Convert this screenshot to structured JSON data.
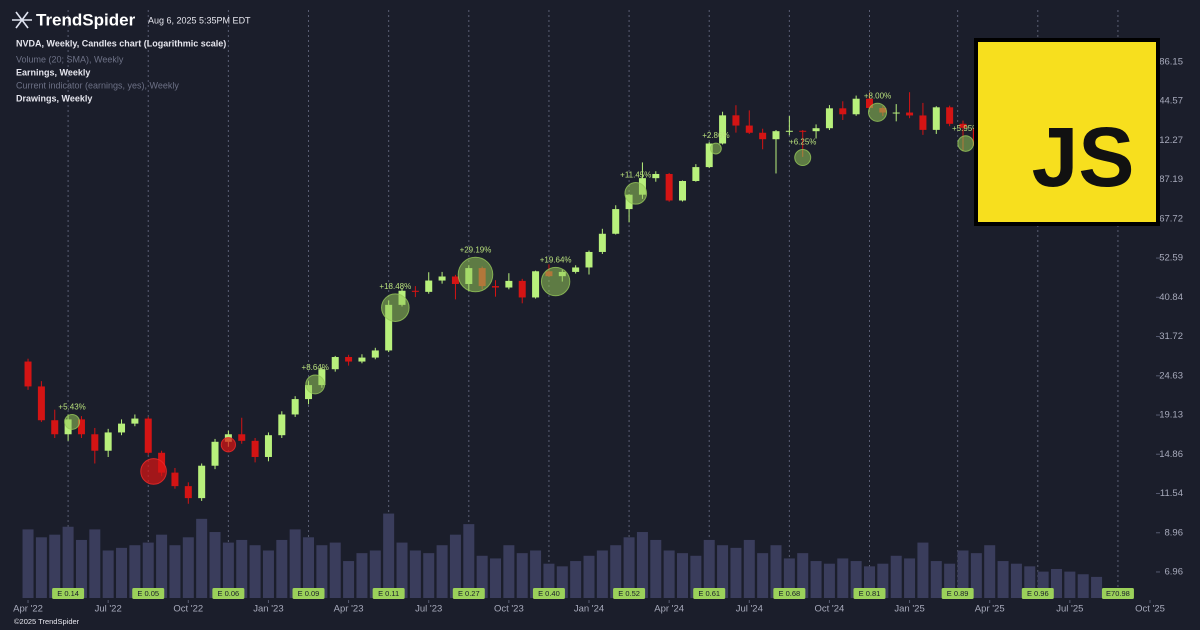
{
  "header": {
    "brand": "TrendSpider",
    "timestamp": "Aug 6, 2025 5:35PM EDT",
    "copyright": "©2025 TrendSpider"
  },
  "indicators": [
    "Volume (20; SMA), Weekly",
    "Earnings, Weekly",
    "Current indicator (earnings, yes), Weekly",
    "Drawings, Weekly"
  ],
  "logo_overlay": "JS",
  "chart_data": {
    "type": "candlestick",
    "title": "NVDA, Weekly, Candles chart (Logarithmic scale)",
    "log_scale": true,
    "grid": false,
    "up_color": "#b8f07c",
    "down_color": "#d41414",
    "volume_color": "#3a3d5c",
    "ylim": [
      5.81,
      260
    ],
    "yticks": [
      6.96,
      8.96,
      11.54,
      14.86,
      19.13,
      24.63,
      31.72,
      40.84,
      52.59,
      67.72,
      87.19,
      112.27,
      144.57,
      186.15
    ],
    "y2lim": [
      0,
      1800
    ],
    "xlim": [
      -1.35,
      84.6
    ],
    "xticks": [
      {
        "value": 0,
        "label": "Apr '22"
      },
      {
        "value": 6,
        "label": "Jul '22"
      },
      {
        "value": 12,
        "label": "Oct '22"
      },
      {
        "value": 18,
        "label": "Jan '23"
      },
      {
        "value": 24,
        "label": "Apr '23"
      },
      {
        "value": 30,
        "label": "Jul '23"
      },
      {
        "value": 36,
        "label": "Oct '23"
      },
      {
        "value": 42,
        "label": "Jan '24"
      },
      {
        "value": 48,
        "label": "Apr '24"
      },
      {
        "value": 54,
        "label": "Jul '24"
      },
      {
        "value": 60,
        "label": "Oct '24"
      },
      {
        "value": 66,
        "label": "Jan '25"
      },
      {
        "value": 72,
        "label": "Apr '25"
      },
      {
        "value": 78,
        "label": "Jul '25"
      },
      {
        "value": 84,
        "label": "Oct '25"
      }
    ],
    "ohlc": [
      [
        27.0,
        27.5,
        22.5,
        23.0
      ],
      [
        23.0,
        23.8,
        18.3,
        18.5
      ],
      [
        18.5,
        19.8,
        16.5,
        16.9
      ],
      [
        16.9,
        19.2,
        16.2,
        18.6
      ],
      [
        18.6,
        19.0,
        16.5,
        16.9
      ],
      [
        16.9,
        17.6,
        14.0,
        15.2
      ],
      [
        15.2,
        17.5,
        14.6,
        17.1
      ],
      [
        17.1,
        18.6,
        16.8,
        18.1
      ],
      [
        18.1,
        19.2,
        17.8,
        18.7
      ],
      [
        18.7,
        18.9,
        14.8,
        15.0
      ],
      [
        15.0,
        15.2,
        12.9,
        13.2
      ],
      [
        13.2,
        13.6,
        11.9,
        12.1
      ],
      [
        12.1,
        12.4,
        10.8,
        11.2
      ],
      [
        11.2,
        14.0,
        11.0,
        13.8
      ],
      [
        13.8,
        16.4,
        13.5,
        16.1
      ],
      [
        16.1,
        17.3,
        15.6,
        16.9
      ],
      [
        16.9,
        18.8,
        15.9,
        16.2
      ],
      [
        16.2,
        16.5,
        14.1,
        14.6
      ],
      [
        14.6,
        17.1,
        14.2,
        16.8
      ],
      [
        16.8,
        19.6,
        16.5,
        19.2
      ],
      [
        19.2,
        21.6,
        18.9,
        21.2
      ],
      [
        21.2,
        23.8,
        20.5,
        23.2
      ],
      [
        23.2,
        26.0,
        22.8,
        25.7
      ],
      [
        25.7,
        28.0,
        25.3,
        27.8
      ],
      [
        27.8,
        28.2,
        26.3,
        27.0
      ],
      [
        27.0,
        28.3,
        26.7,
        27.7
      ],
      [
        27.7,
        29.5,
        27.4,
        29.0
      ],
      [
        29.0,
        40.0,
        28.7,
        38.9
      ],
      [
        38.9,
        43.3,
        38.5,
        42.6
      ],
      [
        42.6,
        43.9,
        40.9,
        42.3
      ],
      [
        42.3,
        48.0,
        41.8,
        45.5
      ],
      [
        45.5,
        48.1,
        44.6,
        46.7
      ],
      [
        46.7,
        47.2,
        40.3,
        44.5
      ],
      [
        44.5,
        50.2,
        42.5,
        49.3
      ],
      [
        49.3,
        49.8,
        43.0,
        43.9
      ],
      [
        43.9,
        45.6,
        41.0,
        43.5
      ],
      [
        43.5,
        47.7,
        43.0,
        45.4
      ],
      [
        45.4,
        46.0,
        39.3,
        40.8
      ],
      [
        40.8,
        48.5,
        40.5,
        48.3
      ],
      [
        48.3,
        50.5,
        46.6,
        46.8
      ],
      [
        46.8,
        48.8,
        45.2,
        48.1
      ],
      [
        48.1,
        50.2,
        47.6,
        49.5
      ],
      [
        49.5,
        55.2,
        47.3,
        54.7
      ],
      [
        54.7,
        63.5,
        54.0,
        61.5
      ],
      [
        61.5,
        73.9,
        61.2,
        72.1
      ],
      [
        72.1,
        79.4,
        66.2,
        79.1
      ],
      [
        79.1,
        97.4,
        77.0,
        88.0
      ],
      [
        88.0,
        92.0,
        86.0,
        90.4
      ],
      [
        90.4,
        91.0,
        75.6,
        76.2
      ],
      [
        76.2,
        86.7,
        75.7,
        86.4
      ],
      [
        86.4,
        96.3,
        86.0,
        94.5
      ],
      [
        94.5,
        111.0,
        93.9,
        110.0
      ],
      [
        110.0,
        135.0,
        109.3,
        131.9
      ],
      [
        131.9,
        140.8,
        118.0,
        123.5
      ],
      [
        123.5,
        136.2,
        117.0,
        117.9
      ],
      [
        117.9,
        121.0,
        106.0,
        113.1
      ],
      [
        113.1,
        120.0,
        90.7,
        119.1
      ],
      [
        119.1,
        131.3,
        116.0,
        119.4
      ],
      [
        119.4,
        120.0,
        100.9,
        119.1
      ],
      [
        119.1,
        124.4,
        113.6,
        121.4
      ],
      [
        121.4,
        140.9,
        120.0,
        138.0
      ],
      [
        138.0,
        144.4,
        128.0,
        132.8
      ],
      [
        132.8,
        149.8,
        131.5,
        146.8
      ],
      [
        146.8,
        152.9,
        137.0,
        138.3
      ],
      [
        138.3,
        140.0,
        131.3,
        134.3
      ],
      [
        134.3,
        141.8,
        126.9,
        134.3
      ],
      [
        134.3,
        153.1,
        129.5,
        131.8
      ],
      [
        131.8,
        142.9,
        116.3,
        120.1
      ],
      [
        120.1,
        139.9,
        117.0,
        138.9
      ],
      [
        138.9,
        140.4,
        123.0,
        124.9
      ],
      [
        124.9,
        127.5,
        104.8,
        121.7
      ],
      [
        121.7,
        122.0,
        105.0,
        108.4
      ],
      [
        108.4,
        115.1,
        86.6,
        101.5
      ],
      [
        101.5,
        112.0,
        95.0,
        108.7
      ],
      [
        108.7,
        136.0,
        108.0,
        129.9
      ],
      [
        129.9,
        143.5,
        128.0,
        135.1
      ],
      [
        135.1,
        146.0,
        134.0,
        143.9
      ],
      [
        143.9,
        158.7,
        142.5,
        157.8
      ],
      [
        157.8,
        174.2,
        155.0,
        172.4
      ],
      [
        172.4,
        183.3,
        167.0,
        173.7
      ],
      [
        173.7,
        182.0,
        171.5,
        180.8
      ]
    ],
    "volume": [
      1300,
      1150,
      1200,
      1350,
      1100,
      1300,
      900,
      950,
      1000,
      1050,
      1200,
      1000,
      1150,
      1500,
      1250,
      1050,
      1100,
      1000,
      900,
      1100,
      1300,
      1150,
      1000,
      1050,
      700,
      850,
      900,
      1600,
      1050,
      900,
      850,
      1000,
      1200,
      1400,
      800,
      750,
      1000,
      850,
      900,
      650,
      600,
      700,
      800,
      900,
      1000,
      1150,
      1250,
      1100,
      900,
      850,
      800,
      1100,
      1000,
      950,
      1100,
      850,
      1000,
      750,
      850,
      700,
      650,
      750,
      700,
      600,
      650,
      800,
      750,
      1050,
      700,
      650,
      900,
      850,
      1000,
      700,
      650,
      600,
      500,
      550,
      500,
      450,
      400
    ],
    "earnings": [
      {
        "x": 3.0,
        "label": "E 0.14"
      },
      {
        "x": 9.0,
        "label": "E 0.05"
      },
      {
        "x": 15.0,
        "label": "E 0.06"
      },
      {
        "x": 21.0,
        "label": "E 0.09"
      },
      {
        "x": 27.0,
        "label": "E 0.11"
      },
      {
        "x": 33.0,
        "label": "E 0.27"
      },
      {
        "x": 39.0,
        "label": "E 0.40"
      },
      {
        "x": 45.0,
        "label": "E 0.52"
      },
      {
        "x": 51.0,
        "label": "E 0.61"
      },
      {
        "x": 57.0,
        "label": "E 0.68"
      },
      {
        "x": 63.0,
        "label": "E 0.81"
      },
      {
        "x": 69.6,
        "label": "E 0.89"
      },
      {
        "x": 75.6,
        "label": "E 0.96"
      },
      {
        "x": 81.6,
        "label": "E70.98"
      }
    ],
    "moves": [
      {
        "x": 3.3,
        "price": 18.3,
        "value": 5.43,
        "label": "+5.43%"
      },
      {
        "x": 9.4,
        "price": 13.3,
        "value": -16.0
      },
      {
        "x": 15.0,
        "price": 15.8,
        "value": -4.94
      },
      {
        "x": 21.5,
        "price": 23.3,
        "value": 8.64,
        "label": "+8.64%"
      },
      {
        "x": 27.5,
        "price": 38.2,
        "value": 18.48,
        "label": "+18.48%"
      },
      {
        "x": 33.5,
        "price": 47.3,
        "value": 29.19,
        "label": "+29.19%"
      },
      {
        "x": 39.5,
        "price": 45.2,
        "value": 19.64,
        "label": "+19.64%"
      },
      {
        "x": 45.5,
        "price": 79.8,
        "value": 11.45,
        "label": "+11.45%"
      },
      {
        "x": 51.5,
        "price": 106.5,
        "value": 2.86,
        "label": "+2.86%"
      },
      {
        "x": 58.0,
        "price": 100.5,
        "value": 6.25,
        "label": "+6.25%"
      },
      {
        "x": 63.6,
        "price": 134.5,
        "value": 8.0,
        "label": "+8.00%"
      },
      {
        "x": 70.2,
        "price": 110,
        "value": 5.95,
        "label": "+5.95%"
      }
    ]
  }
}
